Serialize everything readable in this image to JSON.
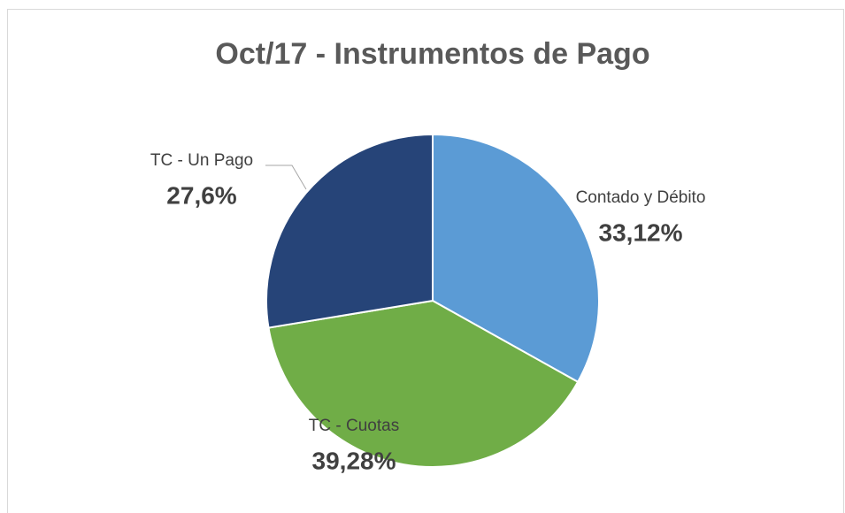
{
  "chart_data": {
    "type": "pie",
    "title": "Oct/17 - Instrumentos de Pago",
    "categories": [
      "Contado y Débito",
      "TC - Cuotas",
      "TC - Un Pago"
    ],
    "values": [
      33.12,
      39.28,
      27.6
    ],
    "value_labels": [
      "33,12%",
      "39,28%",
      "27,6%"
    ],
    "colors": [
      "#5b9bd5",
      "#70ad47",
      "#264478"
    ]
  }
}
